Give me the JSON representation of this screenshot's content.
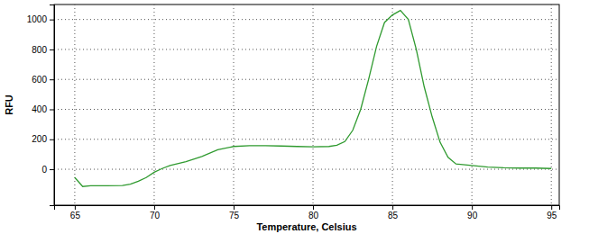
{
  "chart_data": {
    "type": "line",
    "x_label": "Temperature, Celsius",
    "y_label": "RFU",
    "x": [
      65,
      65.5,
      66,
      67,
      68,
      68.5,
      69,
      69.5,
      70,
      70.5,
      71,
      72,
      73,
      74,
      75,
      76,
      77,
      78,
      79,
      80,
      81,
      81.5,
      82,
      82.5,
      83,
      83.5,
      84,
      84.5,
      85,
      85.5,
      86,
      86.5,
      87,
      87.5,
      88,
      88.5,
      89,
      90,
      91,
      92,
      93,
      94,
      95
    ],
    "values": [
      -55,
      -115,
      -110,
      -110,
      -108,
      -100,
      -80,
      -55,
      -20,
      5,
      25,
      50,
      85,
      130,
      152,
      157,
      157,
      155,
      152,
      150,
      152,
      160,
      185,
      260,
      400,
      600,
      820,
      980,
      1030,
      1060,
      1000,
      800,
      550,
      350,
      180,
      80,
      35,
      25,
      15,
      10,
      8,
      8,
      5
    ],
    "color": "#2f9a2f",
    "xlim": [
      63.7,
      95.5
    ],
    "ylim": [
      -240,
      1100
    ],
    "xticks": [
      65,
      70,
      75,
      80,
      85,
      90,
      95
    ],
    "yticks": [
      0,
      200,
      400,
      600,
      800,
      1000
    ],
    "grid": true
  }
}
